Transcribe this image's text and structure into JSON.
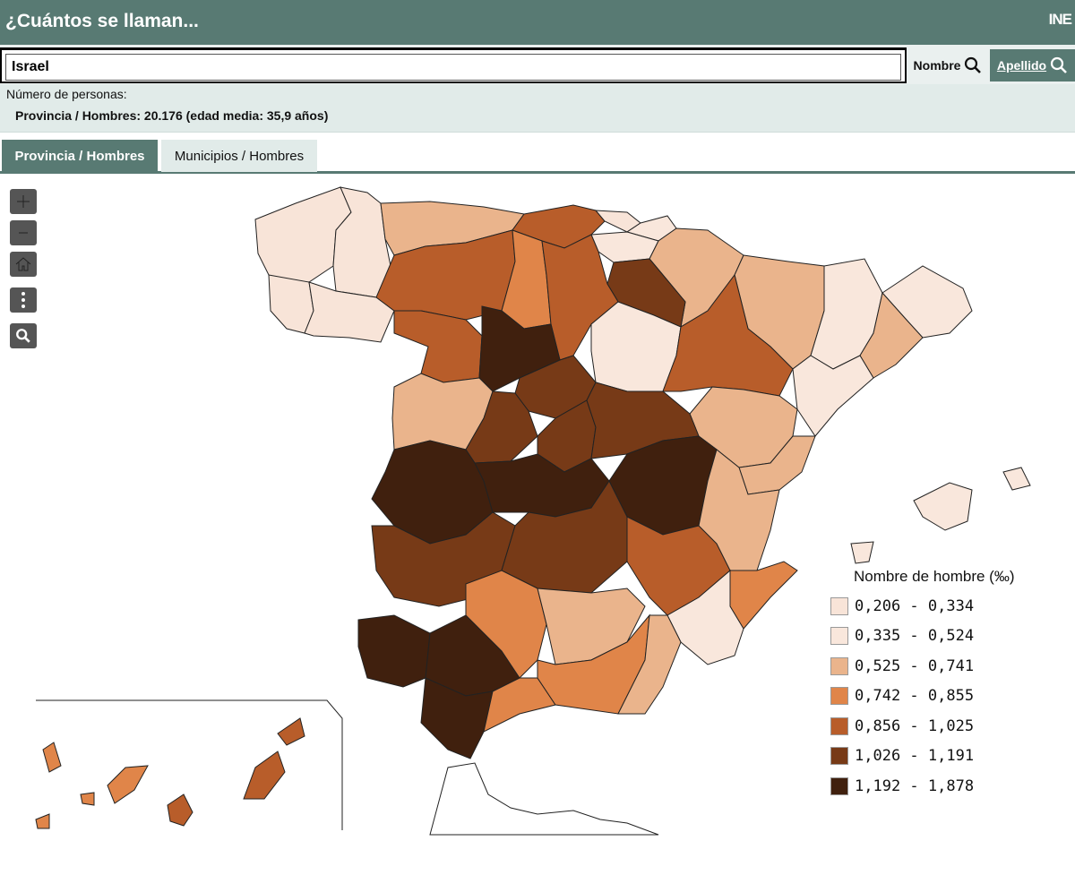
{
  "header": {
    "title": "¿Cuántos se llaman...",
    "logo": "INE"
  },
  "search": {
    "value": "Israel",
    "nombre_label": "Nombre",
    "apellido_label": "Apellido"
  },
  "info": {
    "label": "Número de personas:",
    "stats": "Provincia / Hombres: 20.176 (edad media: 35,9 años)"
  },
  "tabs": [
    {
      "label": "Provincia / Hombres",
      "active": true
    },
    {
      "label": "Municipios / Hombres",
      "active": false
    }
  ],
  "map_controls": [
    "zoom-in-icon",
    "zoom-out-icon",
    "home-icon",
    "more-icon",
    "search-icon"
  ],
  "legend": {
    "title": "Nombre de hombre (‰)",
    "items": [
      {
        "label": "0,206 - 0,334",
        "color": "#f8e4d8"
      },
      {
        "label": "0,335 - 0,524",
        "color": "#f9e7dc"
      },
      {
        "label": "0,525 - 0,741",
        "color": "#eab48c"
      },
      {
        "label": "0,742 - 0,855",
        "color": "#e08549"
      },
      {
        "label": "0,856 - 1,025",
        "color": "#b85d2a"
      },
      {
        "label": "1,026 - 1,191",
        "color": "#773a17"
      },
      {
        "label": "1,192 - 1,878",
        "color": "#40200e"
      }
    ]
  },
  "colors": {
    "brand": "#587a73",
    "panel": "#e1ebe9"
  }
}
